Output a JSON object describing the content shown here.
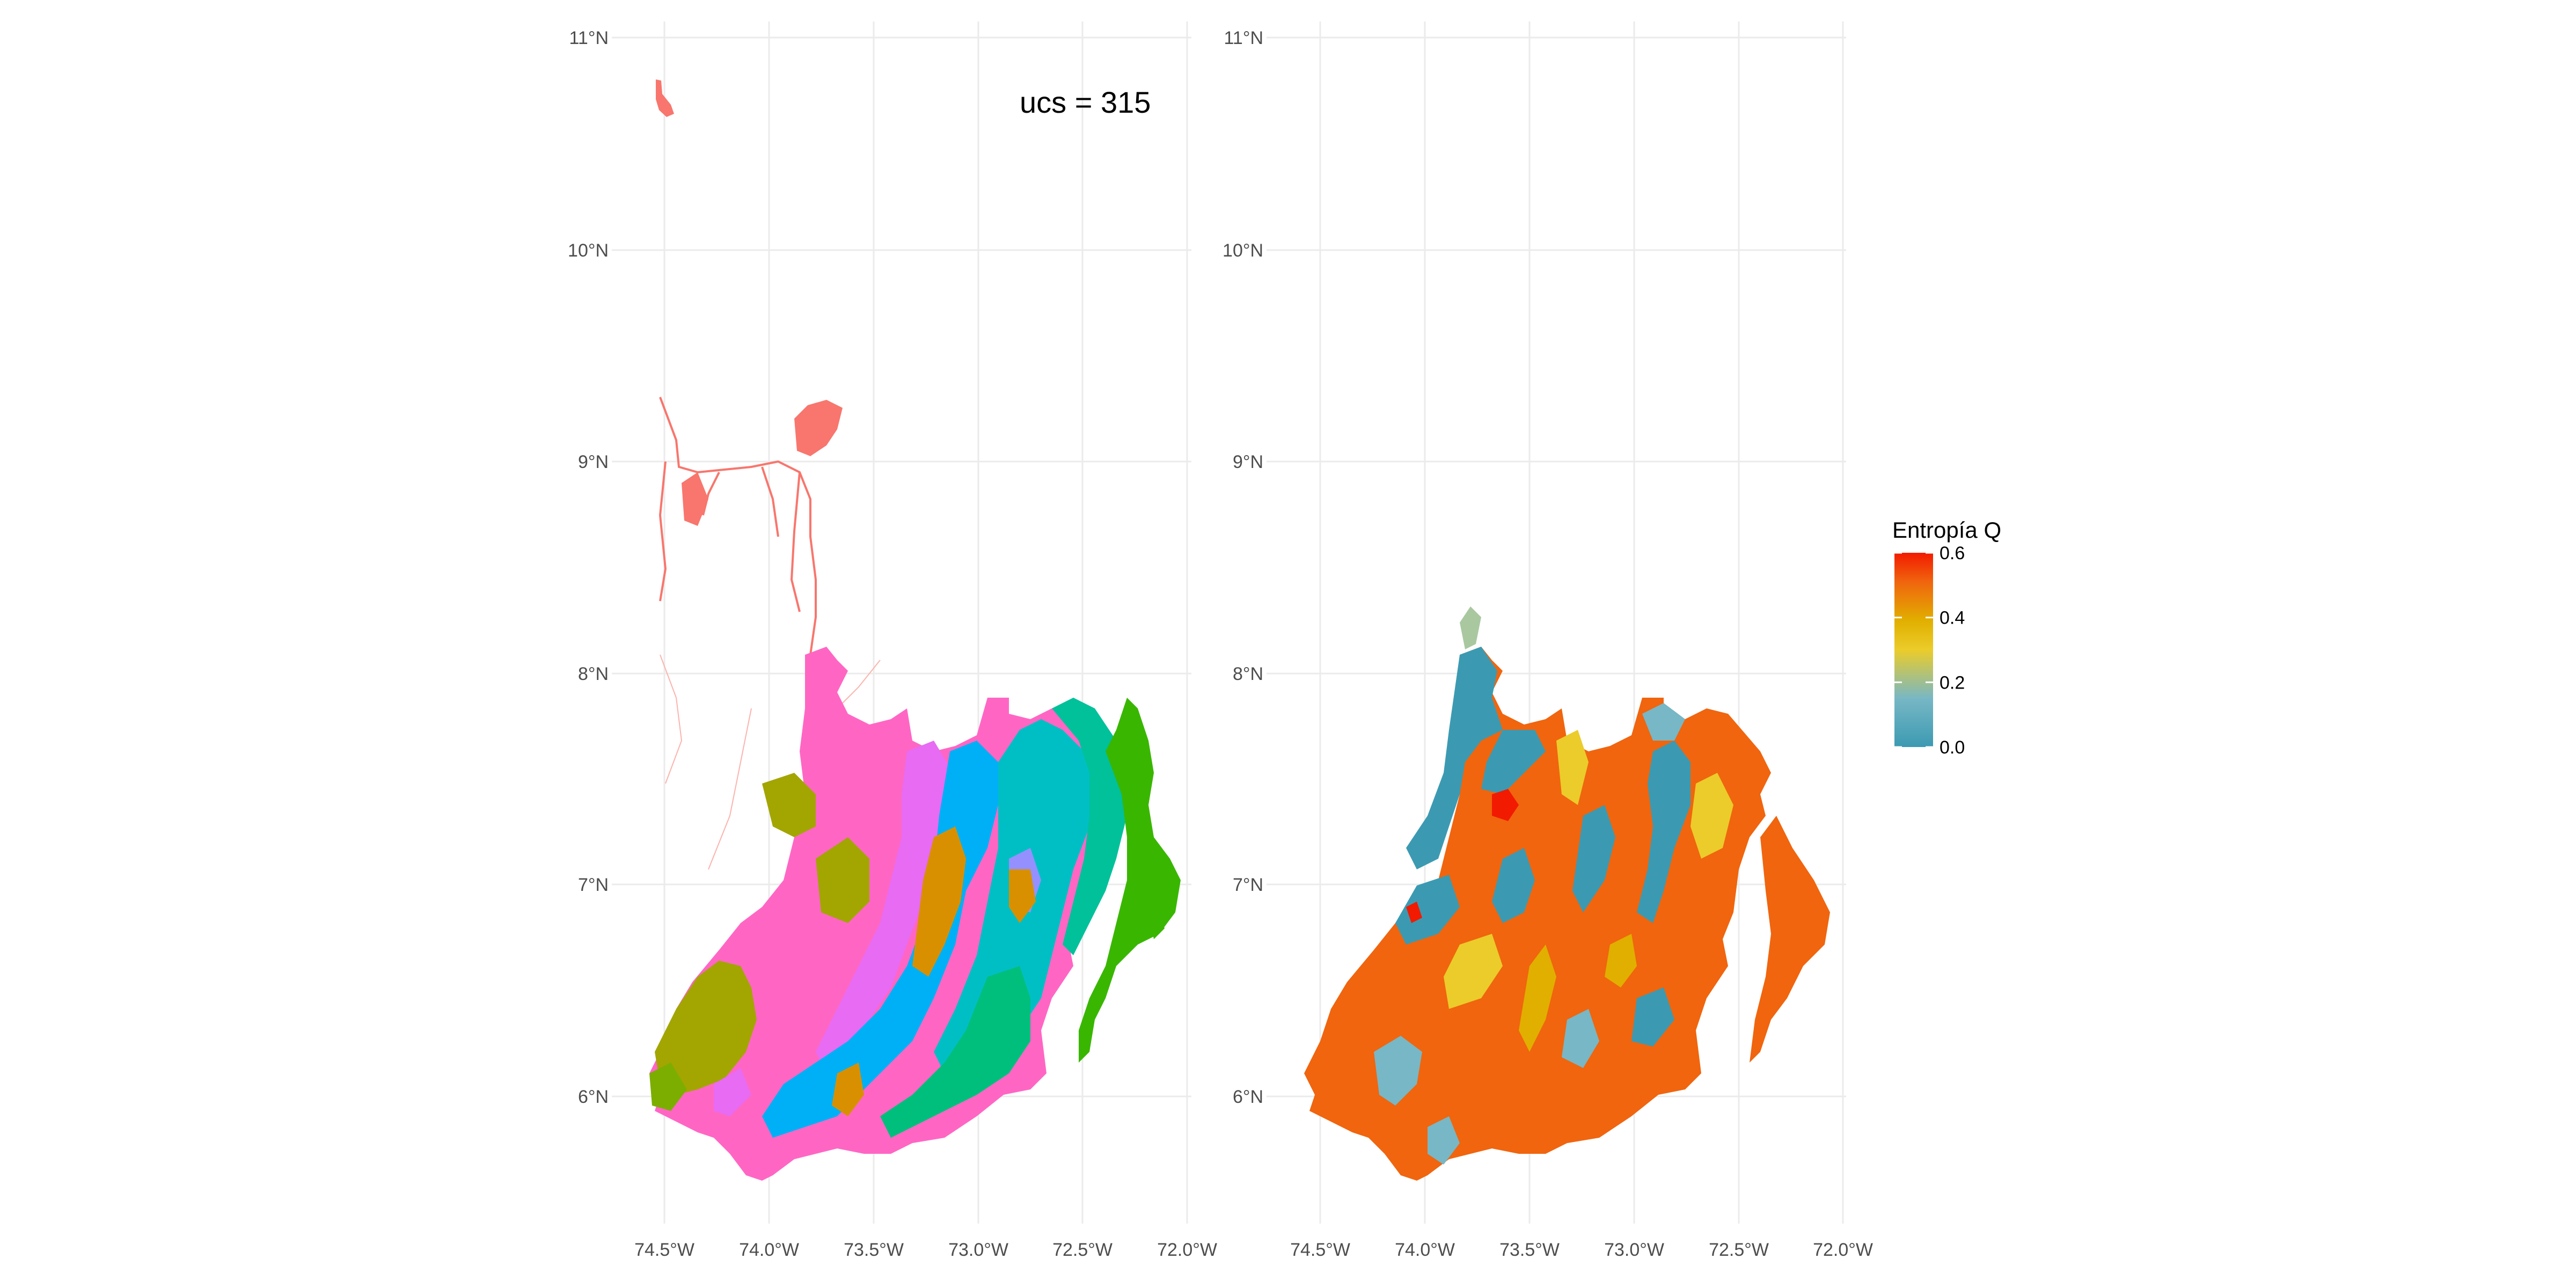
{
  "chart_data": [
    {
      "type": "map",
      "panel": "left",
      "annotation": "ucs =  315",
      "fill_scale": "categorical (one hue per unit)",
      "lat_ticks": [
        "11°N",
        "10°N",
        "9°N",
        "8°N",
        "7°N",
        "6°N"
      ],
      "lon_ticks": [
        "74.5°W",
        "74.0°W",
        "73.5°W",
        "73.0°W",
        "72.5°W",
        "72.0°W"
      ],
      "lat_range": [
        5.3,
        11.1
      ],
      "lon_range": [
        -74.9,
        -72.0
      ],
      "colors": [
        "#f8766d",
        "#ff66c4",
        "#e76bf3",
        "#a3a500",
        "#7cae00",
        "#39b600",
        "#00bf7d",
        "#00bfc4",
        "#00b0f6",
        "#9590ff",
        "#d89000",
        "#00c19a"
      ]
    },
    {
      "type": "map",
      "panel": "right",
      "legend_title": "Entropía Q",
      "legend_ticks": [
        "0.0",
        "0.2",
        "0.4",
        "0.6"
      ],
      "legend_range": [
        0.0,
        0.6
      ],
      "legend_colors": [
        "#3b9ab2",
        "#78b7c5",
        "#ebcc2a",
        "#e1af00",
        "#f0650e",
        "#f21a00"
      ],
      "lat_ticks": [
        "11°N",
        "10°N",
        "9°N",
        "8°N",
        "7°N",
        "6°N"
      ],
      "lon_ticks": [
        "74.5°W",
        "74.0°W",
        "73.5°W",
        "73.0°W",
        "72.5°W",
        "72.0°W"
      ],
      "lat_range": [
        5.3,
        11.1
      ],
      "lon_range": [
        -74.9,
        -72.0
      ]
    }
  ]
}
